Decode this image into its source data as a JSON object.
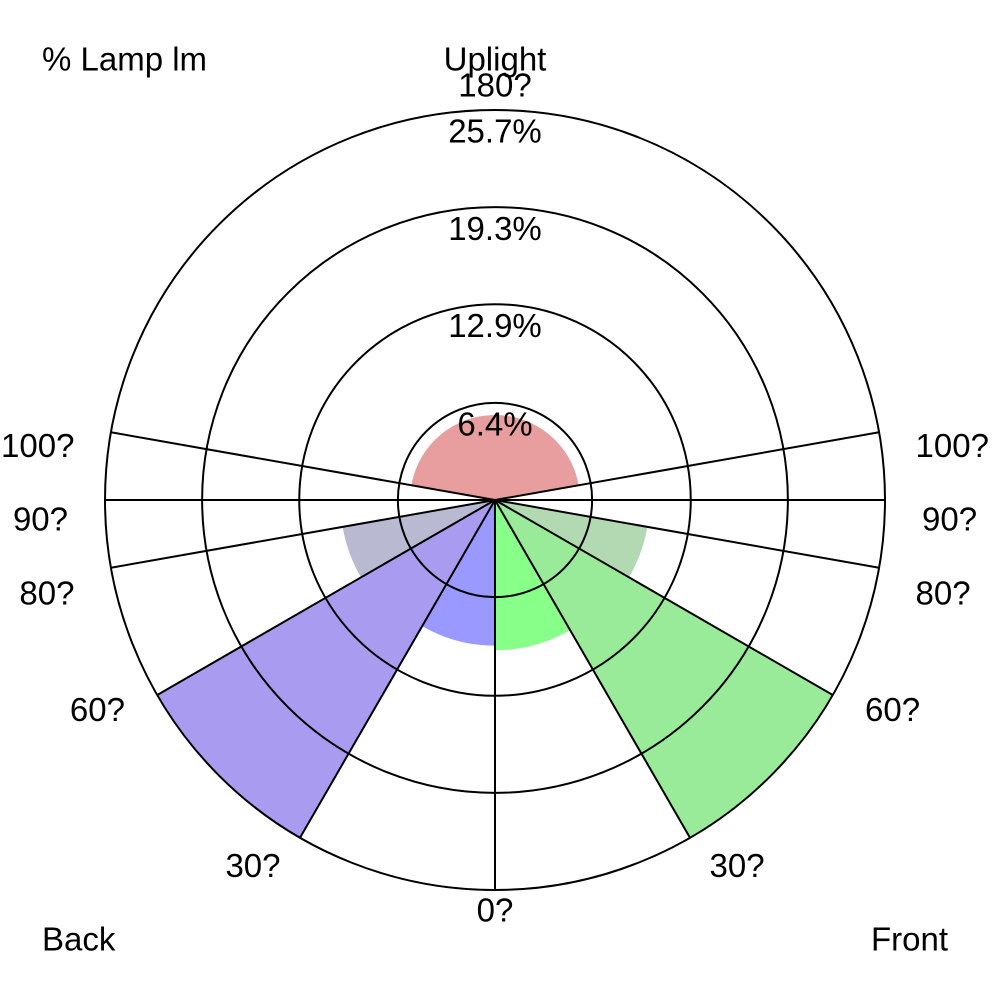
{
  "chart_data": {
    "type": "polar-zones",
    "corner_labels": {
      "top_left": "% Lamp lm",
      "top_center": "Uplight",
      "bottom_left": "Back",
      "bottom_right": "Front"
    },
    "rlim": [
      0,
      25.7
    ],
    "rticks": [
      {
        "value": 6.4,
        "label": "6.4%"
      },
      {
        "value": 12.9,
        "label": "12.9%"
      },
      {
        "value": 19.3,
        "label": "19.3%"
      },
      {
        "value": 25.7,
        "label": "25.7%"
      }
    ],
    "angle_ticks": [
      {
        "value": 0,
        "label": "0?"
      },
      {
        "value": 30,
        "label": "30?"
      },
      {
        "value": 60,
        "label": "60?"
      },
      {
        "value": 80,
        "label": "80?"
      },
      {
        "value": 90,
        "label": "90?"
      },
      {
        "value": 100,
        "label": "100?"
      },
      {
        "value": -30,
        "label": "30?"
      },
      {
        "value": -60,
        "label": "60?"
      },
      {
        "value": -80,
        "label": "80?"
      },
      {
        "value": -90,
        "label": "90?"
      },
      {
        "value": -100,
        "label": "100?"
      },
      {
        "value": 180,
        "label": "180?"
      }
    ],
    "zones": [
      {
        "from": 0,
        "to": 30,
        "value": 9.9,
        "color": "#88ff88"
      },
      {
        "from": 30,
        "to": 60,
        "value": 25.7,
        "color": "#99eb99"
      },
      {
        "from": 60,
        "to": 80,
        "value": 10.2,
        "color": "#b3d9b3"
      },
      {
        "from": -30,
        "to": 0,
        "value": 9.6,
        "color": "#9999ff"
      },
      {
        "from": -60,
        "to": -30,
        "value": 25.7,
        "color": "#a99cf0"
      },
      {
        "from": -80,
        "to": -60,
        "value": 10.2,
        "color": "#b9b9d1"
      },
      {
        "from": 100,
        "to": 260,
        "value": 5.6,
        "color": "#e89e9e"
      }
    ]
  }
}
